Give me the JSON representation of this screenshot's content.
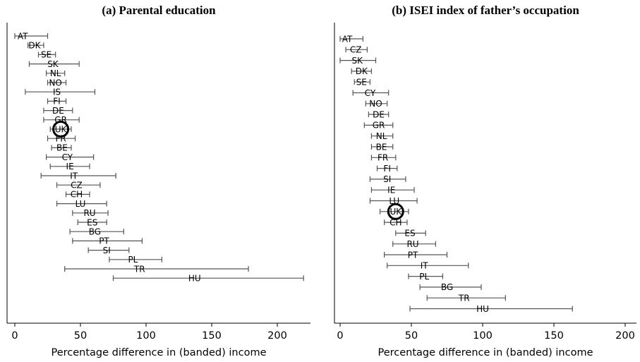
{
  "chart_data": [
    {
      "type": "errorbar",
      "title": "(a) Parental education",
      "xlabel": "Percentage difference in (banded) income",
      "xlim": [
        -5,
        225
      ],
      "xticks": [
        0,
        50,
        100,
        150,
        200
      ],
      "highlight": "UK",
      "rows": [
        {
          "label": "AT",
          "est": 6,
          "lo": 0,
          "hi": 25
        },
        {
          "label": "DK",
          "est": 15,
          "lo": 10,
          "hi": 22
        },
        {
          "label": "SE",
          "est": 24,
          "lo": 18,
          "hi": 31
        },
        {
          "label": "SK",
          "est": 29,
          "lo": 11,
          "hi": 49
        },
        {
          "label": "NL",
          "est": 31,
          "lo": 24,
          "hi": 38
        },
        {
          "label": "NO",
          "est": 31,
          "lo": 25,
          "hi": 39
        },
        {
          "label": "IS",
          "est": 32,
          "lo": 8,
          "hi": 61
        },
        {
          "label": "FI",
          "est": 32,
          "lo": 25,
          "hi": 39
        },
        {
          "label": "DE",
          "est": 33,
          "lo": 22,
          "hi": 44
        },
        {
          "label": "GR",
          "est": 35,
          "lo": 22,
          "hi": 49
        },
        {
          "label": "UK",
          "est": 35,
          "lo": 27,
          "hi": 43
        },
        {
          "label": "FR",
          "est": 35,
          "lo": 25,
          "hi": 46
        },
        {
          "label": "BE",
          "est": 36,
          "lo": 28,
          "hi": 43
        },
        {
          "label": "CY",
          "est": 40,
          "lo": 24,
          "hi": 60
        },
        {
          "label": "IE",
          "est": 42,
          "lo": 27,
          "hi": 57
        },
        {
          "label": "IT",
          "est": 45,
          "lo": 20,
          "hi": 77
        },
        {
          "label": "CZ",
          "est": 47,
          "lo": 32,
          "hi": 65
        },
        {
          "label": "CH",
          "est": 47,
          "lo": 39,
          "hi": 57
        },
        {
          "label": "LU",
          "est": 50,
          "lo": 32,
          "hi": 70
        },
        {
          "label": "RU",
          "est": 57,
          "lo": 44,
          "hi": 71
        },
        {
          "label": "ES",
          "est": 59,
          "lo": 48,
          "hi": 70
        },
        {
          "label": "BG",
          "est": 61,
          "lo": 42,
          "hi": 83
        },
        {
          "label": "PT",
          "est": 68,
          "lo": 44,
          "hi": 97
        },
        {
          "label": "SI",
          "est": 70,
          "lo": 56,
          "hi": 87
        },
        {
          "label": "PL",
          "est": 90,
          "lo": 72,
          "hi": 112
        },
        {
          "label": "TR",
          "est": 95,
          "lo": 38,
          "hi": 178
        },
        {
          "label": "HU",
          "est": 137,
          "lo": 75,
          "hi": 220
        }
      ]
    },
    {
      "type": "errorbar",
      "title": "(b) ISEI index of father’s occupation",
      "xlabel": "Percentage difference in (banded) income",
      "xlim": [
        -5,
        205
      ],
      "xticks": [
        0,
        50,
        100,
        150,
        200
      ],
      "highlight": "UK",
      "rows": [
        {
          "label": "AT",
          "est": 5,
          "lo": 0,
          "hi": 16
        },
        {
          "label": "CZ",
          "est": 11,
          "lo": 4,
          "hi": 19
        },
        {
          "label": "SK",
          "est": 12,
          "lo": 0,
          "hi": 25
        },
        {
          "label": "DK",
          "est": 15,
          "lo": 8,
          "hi": 22
        },
        {
          "label": "SE",
          "est": 15,
          "lo": 10,
          "hi": 21
        },
        {
          "label": "CY",
          "est": 21,
          "lo": 9,
          "hi": 34
        },
        {
          "label": "NO",
          "est": 25,
          "lo": 18,
          "hi": 33
        },
        {
          "label": "DE",
          "est": 27,
          "lo": 20,
          "hi": 34
        },
        {
          "label": "GR",
          "est": 27,
          "lo": 17,
          "hi": 37
        },
        {
          "label": "NL",
          "est": 29,
          "lo": 22,
          "hi": 37
        },
        {
          "label": "BE",
          "est": 29,
          "lo": 22,
          "hi": 37
        },
        {
          "label": "FR",
          "est": 30,
          "lo": 22,
          "hi": 39
        },
        {
          "label": "FI",
          "est": 33,
          "lo": 26,
          "hi": 40
        },
        {
          "label": "SI",
          "est": 33,
          "lo": 21,
          "hi": 46
        },
        {
          "label": "IE",
          "est": 36,
          "lo": 22,
          "hi": 52
        },
        {
          "label": "LU",
          "est": 38,
          "lo": 21,
          "hi": 54
        },
        {
          "label": "UK",
          "est": 39,
          "lo": 28,
          "hi": 48
        },
        {
          "label": "CH",
          "est": 39,
          "lo": 31,
          "hi": 47
        },
        {
          "label": "ES",
          "est": 49,
          "lo": 39,
          "hi": 60
        },
        {
          "label": "RU",
          "est": 51,
          "lo": 37,
          "hi": 67
        },
        {
          "label": "PT",
          "est": 51,
          "lo": 31,
          "hi": 75
        },
        {
          "label": "IT",
          "est": 59,
          "lo": 33,
          "hi": 90
        },
        {
          "label": "PL",
          "est": 59,
          "lo": 48,
          "hi": 72
        },
        {
          "label": "BG",
          "est": 75,
          "lo": 56,
          "hi": 99
        },
        {
          "label": "TR",
          "est": 87,
          "lo": 61,
          "hi": 116
        },
        {
          "label": "HU",
          "est": 100,
          "lo": 49,
          "hi": 163
        }
      ]
    }
  ]
}
